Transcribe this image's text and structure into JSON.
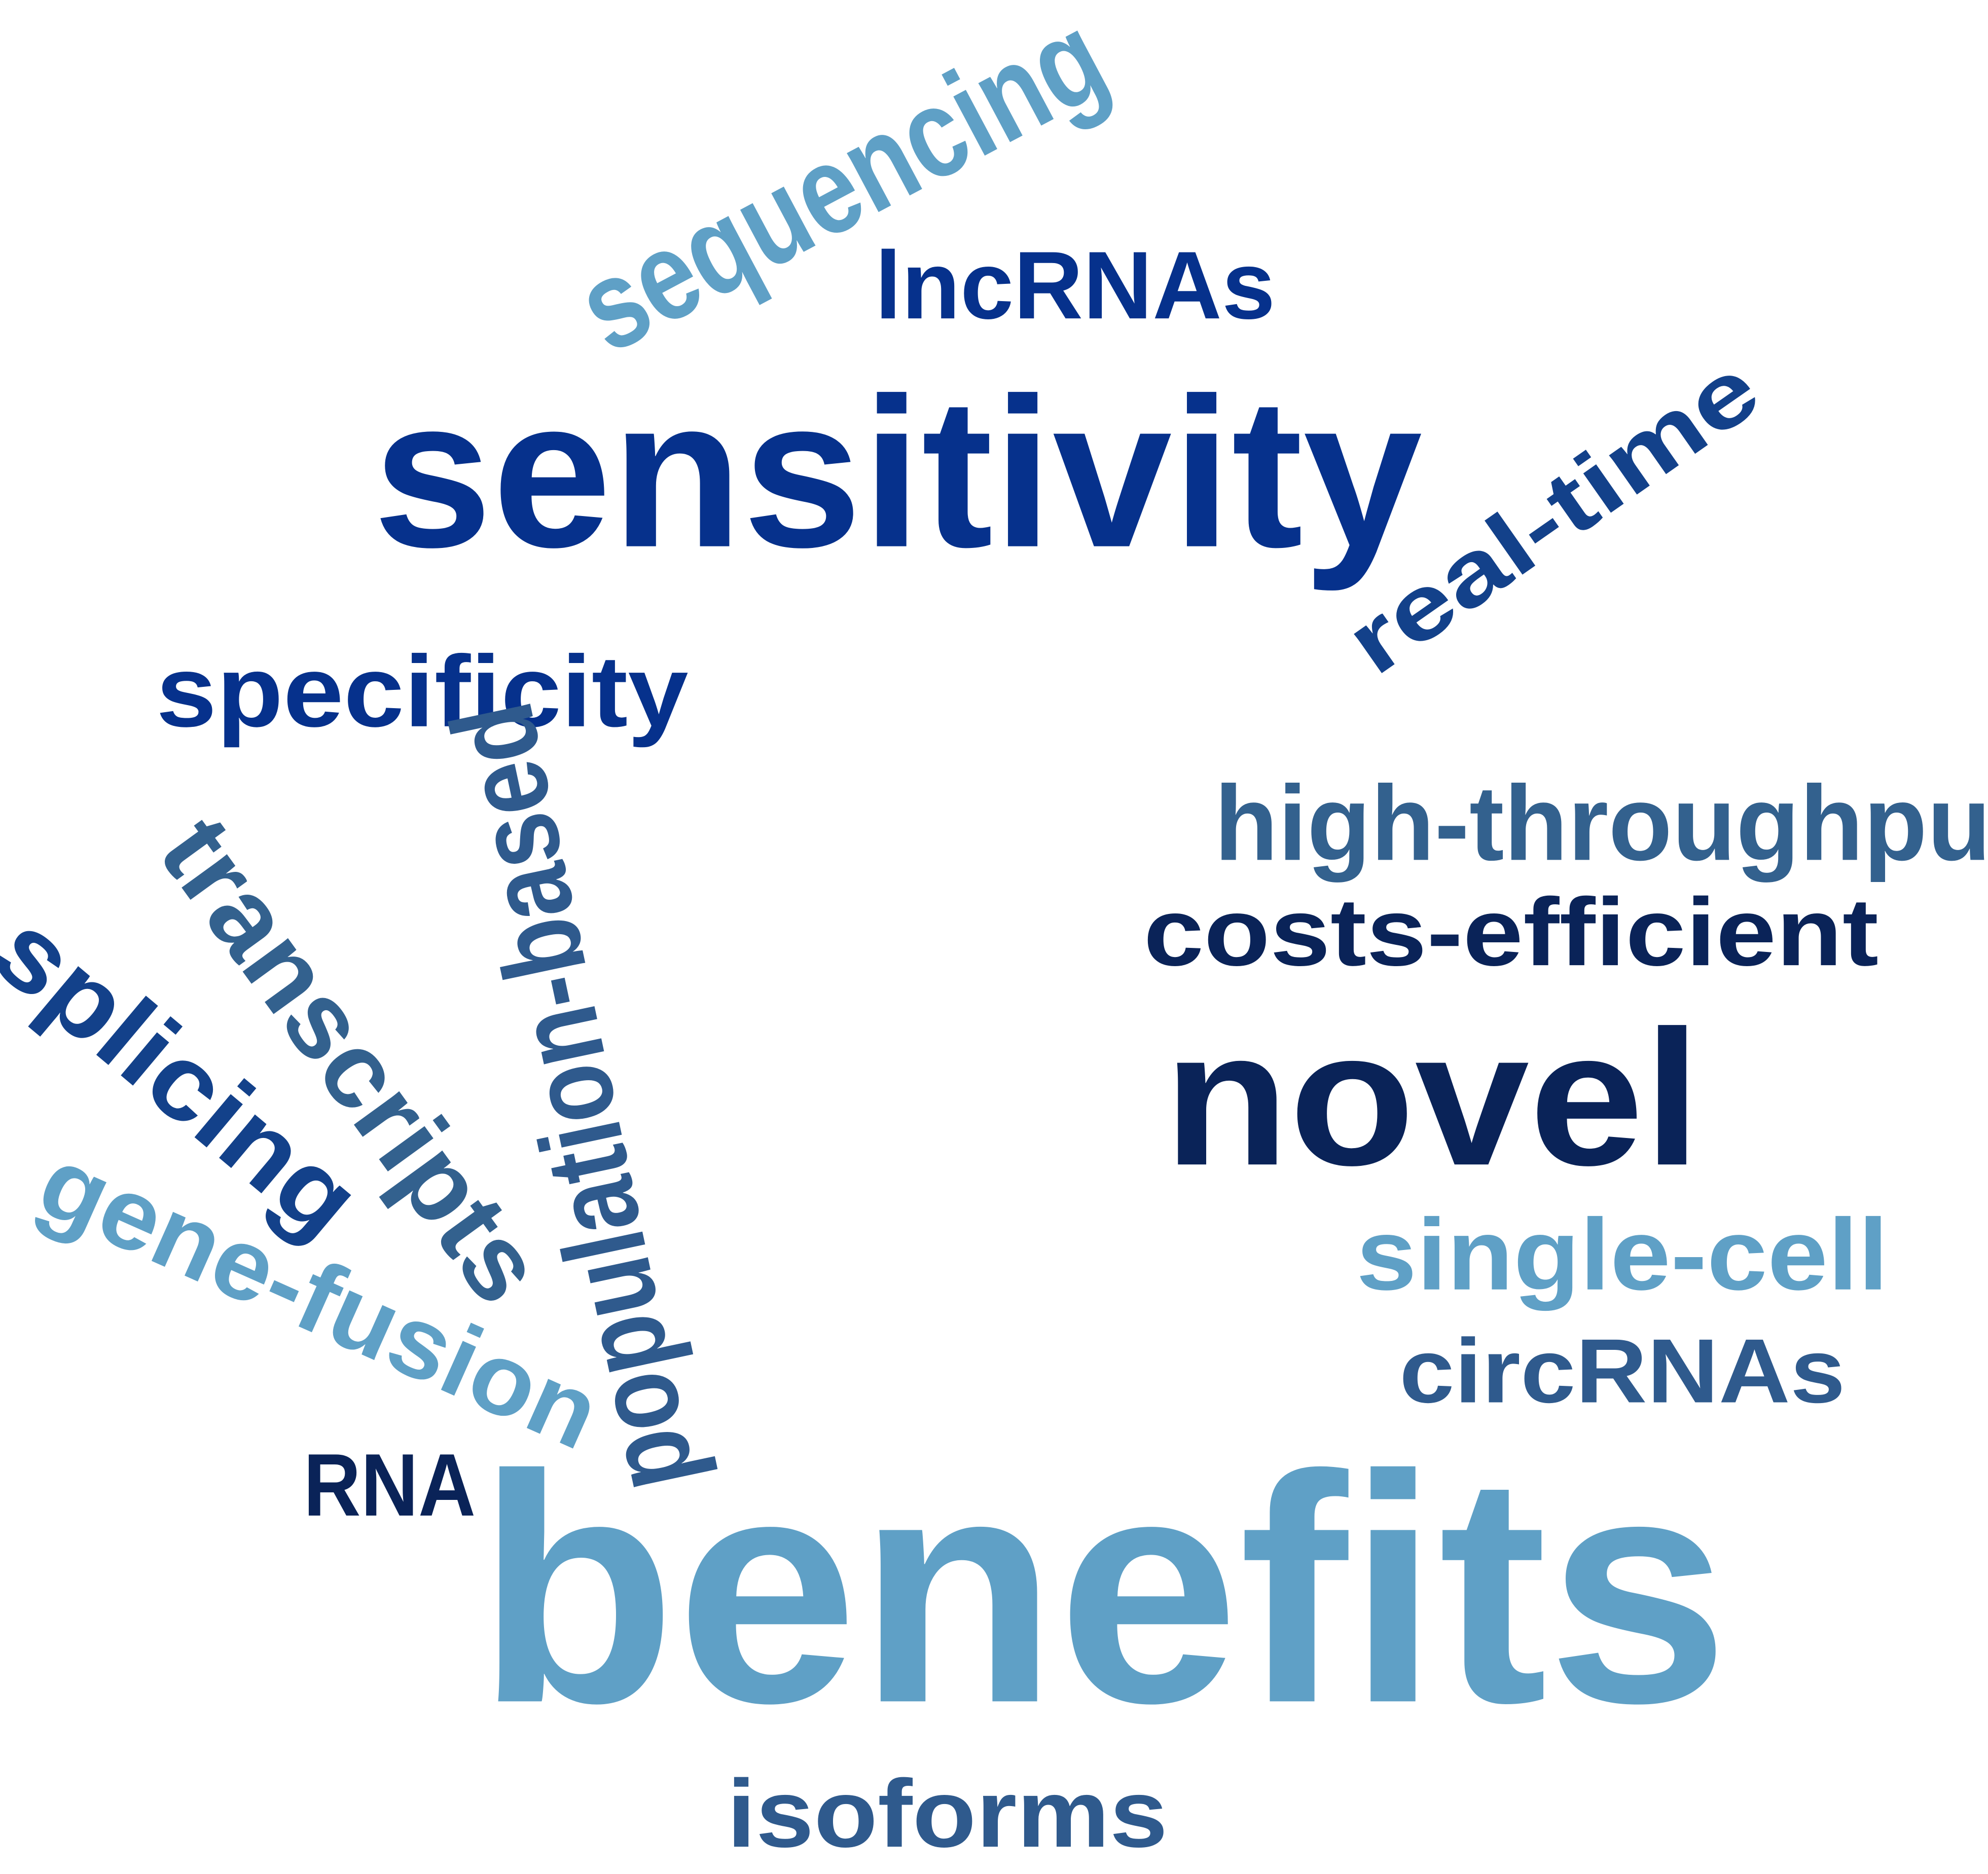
{
  "words": {
    "sequencing": {
      "text": "sequencing",
      "color": "#5fa0c6"
    },
    "lncrnas": {
      "text": "lncRNAs",
      "color": "#06318c"
    },
    "sensitivity": {
      "text": "sensitivity",
      "color": "#06318c"
    },
    "realtime": {
      "text": "real-time",
      "color": "#13418a"
    },
    "specificity": {
      "text": "specificity",
      "color": "#06318c"
    },
    "highthroughput": {
      "text": "high-throughput",
      "color": "#33618e"
    },
    "costsefficient": {
      "text": "costs-efficient",
      "color": "#0a2358"
    },
    "novel": {
      "text": "novel",
      "color": "#0a2358"
    },
    "singlecell": {
      "text": "single-cell",
      "color": "#5fa0c6"
    },
    "circrnas": {
      "text": "circRNAs",
      "color": "#2f5a8d"
    },
    "population": {
      "text": "population-based",
      "color": "#2f5a8d"
    },
    "transcripts": {
      "text": "transcripts",
      "color": "#33618e"
    },
    "splicing": {
      "text": "splicing",
      "color": "#13418a"
    },
    "genefusion": {
      "text": "gene-fusion",
      "color": "#5fa0c6"
    },
    "rna": {
      "text": "RNA",
      "color": "#0a2358"
    },
    "benefits": {
      "text": "benefits",
      "color": "#5fa0c6"
    },
    "isoforms": {
      "text": "isoforms",
      "color": "#2f5a8d"
    }
  }
}
